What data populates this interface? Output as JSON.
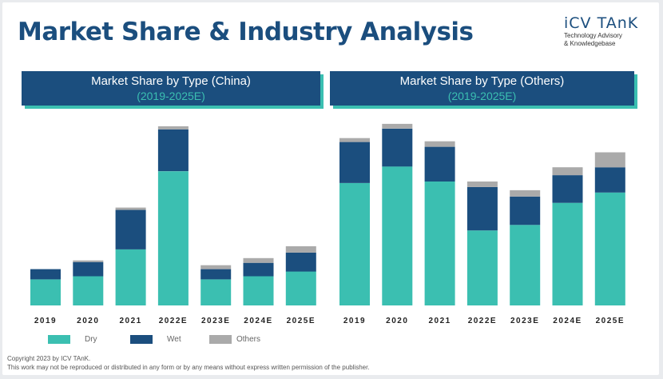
{
  "title": "Market Share & Industry Analysis",
  "logo": {
    "name": "iCV TAnK",
    "tagline_1": "Technology Advisory",
    "tagline_2": "& Knowledgebase"
  },
  "colors": {
    "dry": "#3bbfb1",
    "wet": "#1b4e7e",
    "others": "#aaaaaa",
    "header_bg": "#1b4e7e",
    "accent": "#3bbfb1"
  },
  "legend": {
    "dry": "Dry",
    "wet": "Wet",
    "others": "Others"
  },
  "footer": {
    "line1": "Copyright  2023 by ICV TAnK.",
    "line2": "This work may not be reproduced or distributed in any form or by any means without express written permission of the publisher."
  },
  "chart_data": [
    {
      "type": "bar",
      "stacked": true,
      "title": "Market Share by Type  (China)",
      "subtitle": "(2019-2025E)",
      "categories": [
        "2019",
        "2020",
        "2021",
        "2022E",
        "2023E",
        "2024E",
        "2025E"
      ],
      "ylim": [
        0,
        235
      ],
      "series": [
        {
          "name": "Dry",
          "values": [
            33,
            37,
            71,
            170,
            33,
            37,
            43
          ]
        },
        {
          "name": "Wet",
          "values": [
            13,
            18,
            50,
            53,
            13,
            17,
            24
          ]
        },
        {
          "name": "Others",
          "values": [
            0,
            2,
            3,
            4,
            5,
            6,
            8
          ]
        }
      ]
    },
    {
      "type": "bar",
      "stacked": true,
      "title": "Market Share by Type  (Others)",
      "subtitle": "(2019-2025E)",
      "categories": [
        "2019",
        "2020",
        "2021",
        "2022E",
        "2023E",
        "2024E",
        "2025E"
      ],
      "ylim": [
        0,
        235
      ],
      "series": [
        {
          "name": "Dry",
          "values": [
            155,
            176,
            157,
            95,
            102,
            130,
            143
          ]
        },
        {
          "name": "Wet",
          "values": [
            52,
            48,
            44,
            55,
            36,
            35,
            32
          ]
        },
        {
          "name": "Others",
          "values": [
            5,
            6,
            7,
            7,
            8,
            10,
            19
          ]
        }
      ]
    }
  ]
}
